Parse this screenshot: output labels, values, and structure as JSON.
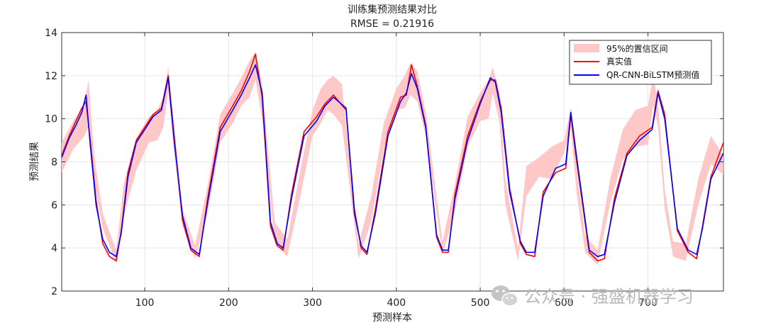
{
  "chart_data": {
    "type": "line",
    "title": "训练集预测结果对比",
    "subtitle": "RMSE = 0.21916",
    "xlabel": "预测样本",
    "ylabel": "预测结果",
    "xlim": [
      1,
      790
    ],
    "ylim": [
      2,
      14
    ],
    "xticks": [
      100,
      200,
      300,
      400,
      500,
      600,
      700
    ],
    "yticks": [
      2,
      4,
      6,
      8,
      10,
      12,
      14
    ],
    "grid": true,
    "legend_position": "top-right",
    "series": [
      {
        "name": "95%的置信区间",
        "kind": "band",
        "color": "#ffc8c8",
        "x": [
          1,
          15,
          28,
          33,
          40,
          50,
          66,
          75,
          90,
          105,
          115,
          122,
          128,
          135,
          145,
          160,
          175,
          190,
          205,
          215,
          225,
          232,
          240,
          255,
          270,
          285,
          300,
          310,
          318,
          325,
          335,
          355,
          370,
          385,
          400,
          410,
          417,
          425,
          435,
          455,
          470,
          485,
          500,
          510,
          515,
          523,
          530,
          545,
          555,
          570,
          585,
          600,
          608,
          615,
          625,
          640,
          655,
          670,
          685,
          700,
          706,
          712,
          720,
          730,
          745,
          760,
          775,
          790
        ],
        "lower": [
          7.5,
          8.6,
          9.2,
          9.6,
          7.0,
          4.9,
          3.3,
          5.5,
          7.6,
          8.9,
          9.0,
          9.6,
          11.3,
          8.4,
          5.0,
          3.5,
          5.6,
          8.9,
          9.8,
          10.6,
          11.0,
          11.8,
          10.0,
          4.2,
          3.6,
          6.3,
          9.2,
          9.8,
          10.4,
          10.2,
          9.7,
          3.5,
          5.2,
          8.6,
          10.4,
          10.5,
          11.1,
          10.8,
          9.2,
          3.7,
          5.7,
          8.7,
          9.9,
          10.0,
          11.2,
          9.8,
          6.0,
          3.4,
          6.4,
          7.3,
          7.2,
          8.4,
          9.6,
          6.5,
          3.8,
          3.2,
          6.1,
          8.1,
          8.7,
          8.8,
          10.6,
          9.6,
          5.8,
          3.6,
          3.4,
          6.0,
          7.9,
          7.4
        ],
        "upper": [
          8.9,
          9.9,
          10.6,
          11.8,
          8.2,
          5.6,
          3.9,
          7.0,
          9.1,
          10.1,
          10.4,
          11.0,
          12.4,
          9.7,
          5.8,
          4.1,
          6.9,
          10.2,
          11.2,
          11.9,
          12.7,
          13.1,
          11.6,
          5.2,
          4.4,
          7.5,
          10.4,
          11.4,
          11.8,
          12.0,
          11.6,
          4.2,
          6.4,
          9.8,
          11.4,
          12.0,
          12.6,
          12.2,
          10.3,
          4.3,
          7.0,
          10.1,
          11.2,
          11.8,
          12.4,
          11.2,
          7.2,
          4.0,
          7.8,
          8.2,
          8.7,
          9.0,
          10.5,
          7.6,
          4.6,
          3.9,
          7.2,
          9.5,
          10.4,
          10.6,
          12.0,
          10.8,
          6.7,
          4.3,
          4.2,
          7.2,
          9.2,
          8.3
        ]
      },
      {
        "name": "真实值",
        "kind": "line",
        "color": "#ff0000",
        "x": [
          1,
          10,
          18,
          25,
          30,
          35,
          42,
          50,
          58,
          66,
          72,
          80,
          90,
          100,
          110,
          120,
          128,
          135,
          145,
          155,
          165,
          175,
          190,
          205,
          215,
          225,
          232,
          240,
          250,
          258,
          265,
          275,
          290,
          305,
          315,
          325,
          340,
          350,
          358,
          365,
          375,
          390,
          405,
          412,
          418,
          425,
          435,
          448,
          455,
          462,
          470,
          485,
          500,
          512,
          518,
          525,
          535,
          548,
          555,
          565,
          575,
          590,
          602,
          608,
          615,
          630,
          640,
          648,
          660,
          675,
          690,
          705,
          712,
          720,
          735,
          748,
          758,
          765,
          775,
          790
        ],
        "y": [
          8.3,
          9.2,
          9.9,
          10.5,
          10.8,
          9.0,
          6.2,
          4.2,
          3.6,
          3.4,
          4.8,
          7.5,
          9.0,
          9.6,
          10.2,
          10.5,
          12.0,
          9.2,
          5.3,
          3.9,
          3.6,
          6.3,
          9.6,
          10.6,
          11.3,
          12.2,
          13.0,
          11.0,
          5.0,
          4.1,
          3.9,
          6.5,
          9.4,
          10.1,
          10.7,
          11.1,
          10.4,
          5.8,
          4.0,
          3.7,
          5.8,
          9.4,
          11.0,
          11.1,
          12.5,
          11.5,
          9.7,
          4.5,
          3.8,
          3.8,
          6.5,
          9.2,
          10.8,
          11.8,
          11.8,
          10.5,
          6.8,
          4.2,
          3.7,
          3.6,
          6.6,
          7.5,
          7.7,
          10.2,
          8.0,
          3.8,
          3.4,
          3.5,
          6.3,
          8.4,
          9.2,
          9.6,
          11.3,
          10.2,
          4.8,
          3.8,
          3.5,
          5.0,
          7.3,
          8.9
        ]
      },
      {
        "name": "QR-CNN-BiLSTM预测值",
        "kind": "line",
        "color": "#0000ff",
        "x": [
          1,
          10,
          18,
          25,
          30,
          35,
          42,
          50,
          58,
          66,
          72,
          80,
          90,
          100,
          110,
          120,
          128,
          135,
          145,
          155,
          165,
          175,
          190,
          205,
          215,
          225,
          232,
          240,
          250,
          258,
          265,
          275,
          290,
          305,
          315,
          325,
          340,
          350,
          358,
          365,
          375,
          390,
          405,
          412,
          418,
          425,
          435,
          448,
          455,
          462,
          470,
          485,
          500,
          512,
          518,
          525,
          535,
          548,
          555,
          565,
          575,
          590,
          602,
          608,
          615,
          630,
          640,
          648,
          660,
          675,
          690,
          705,
          712,
          720,
          735,
          748,
          758,
          765,
          775,
          790
        ],
        "y": [
          8.2,
          9.1,
          9.7,
          10.3,
          11.1,
          8.8,
          6.0,
          4.4,
          3.8,
          3.6,
          4.7,
          7.3,
          8.9,
          9.5,
          10.1,
          10.4,
          11.9,
          9.0,
          5.5,
          4.0,
          3.7,
          6.1,
          9.4,
          10.4,
          11.1,
          11.9,
          12.5,
          11.2,
          5.2,
          4.2,
          4.0,
          6.3,
          9.2,
          9.9,
          10.6,
          11.0,
          10.5,
          5.6,
          4.1,
          3.8,
          5.6,
          9.2,
          10.8,
          11.2,
          12.1,
          11.4,
          9.6,
          4.6,
          3.9,
          3.9,
          6.3,
          9.0,
          10.7,
          11.9,
          11.7,
          10.3,
          6.6,
          4.3,
          3.8,
          3.8,
          6.4,
          7.7,
          7.9,
          10.3,
          8.2,
          3.9,
          3.6,
          3.7,
          6.1,
          8.3,
          9.0,
          9.5,
          11.2,
          10.0,
          4.9,
          3.9,
          3.7,
          4.9,
          7.2,
          8.4
        ]
      }
    ]
  },
  "watermark": {
    "text": "公众号 · 强盛机器学习",
    "icon": "wechat-icon"
  }
}
